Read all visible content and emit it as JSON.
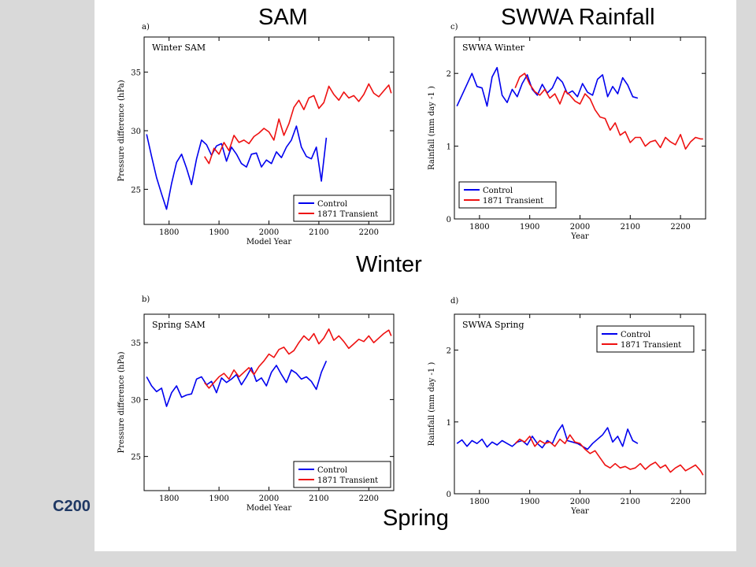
{
  "slide": {
    "header_left": "SAM",
    "header_right": "SWWA Rainfall",
    "label_winter": "Winter",
    "label_spring": "Spring",
    "footer_fragment": "C200"
  },
  "colors": {
    "control": "#0000ee",
    "transient": "#ee1111",
    "background": "#d9d9d9"
  },
  "chart_data": [
    {
      "id": "a",
      "panel_label": "a)",
      "type": "line",
      "title": "Winter SAM",
      "xlabel": "Model Year",
      "ylabel": "Pressure difference (hPa)",
      "xlim": [
        1750,
        2250
      ],
      "ylim": [
        22,
        38
      ],
      "xticks": [
        1800,
        1900,
        2000,
        2100,
        2200
      ],
      "yticks": [
        25,
        30,
        35
      ],
      "legend_position": "bottom-right",
      "series": [
        {
          "name": "Control",
          "color": "#0000ee",
          "x": [
            1755,
            1765,
            1775,
            1785,
            1795,
            1805,
            1815,
            1825,
            1835,
            1845,
            1855,
            1865,
            1875,
            1885,
            1895,
            1905,
            1915,
            1925,
            1935,
            1945,
            1955,
            1965,
            1975,
            1985,
            1995,
            2005,
            2015,
            2025,
            2035,
            2045,
            2055,
            2065,
            2075,
            2085,
            2095,
            2105,
            2115
          ],
          "y": [
            29.7,
            27.8,
            26.0,
            24.6,
            23.3,
            25.5,
            27.3,
            28.0,
            26.8,
            25.4,
            27.6,
            29.2,
            28.8,
            27.9,
            28.7,
            28.9,
            27.4,
            28.6,
            28.0,
            27.2,
            26.9,
            28.0,
            28.1,
            26.9,
            27.5,
            27.2,
            28.2,
            27.7,
            28.6,
            29.2,
            30.4,
            28.6,
            27.8,
            27.6,
            28.6,
            25.7,
            29.4
          ]
        },
        {
          "name": "1871 Transient",
          "color": "#ee1111",
          "x": [
            1871,
            1880,
            1890,
            1900,
            1910,
            1920,
            1930,
            1940,
            1950,
            1960,
            1970,
            1980,
            1990,
            2000,
            2010,
            2020,
            2030,
            2040,
            2050,
            2060,
            2070,
            2080,
            2090,
            2100,
            2110,
            2120,
            2130,
            2140,
            2150,
            2160,
            2170,
            2180,
            2190,
            2200,
            2210,
            2220,
            2230,
            2240,
            2245
          ],
          "y": [
            27.8,
            27.2,
            28.5,
            28.0,
            29.0,
            28.3,
            29.6,
            29.0,
            29.2,
            28.9,
            29.5,
            29.8,
            30.2,
            29.9,
            29.2,
            31.0,
            29.6,
            30.6,
            32.0,
            32.6,
            31.8,
            32.8,
            33.0,
            31.9,
            32.4,
            33.8,
            33.1,
            32.6,
            33.3,
            32.8,
            33.0,
            32.5,
            33.1,
            34.0,
            33.2,
            32.9,
            33.4,
            33.9,
            33.2
          ]
        }
      ]
    },
    {
      "id": "b",
      "panel_label": "b)",
      "type": "line",
      "title": "Spring SAM",
      "xlabel": "Model Year",
      "ylabel": "Pressure difference (hPa)",
      "xlim": [
        1750,
        2250
      ],
      "ylim": [
        22,
        37.5
      ],
      "xticks": [
        1800,
        1900,
        2000,
        2100,
        2200
      ],
      "yticks": [
        25,
        30,
        35
      ],
      "legend_position": "bottom-right",
      "series": [
        {
          "name": "Control",
          "color": "#0000ee",
          "x": [
            1755,
            1765,
            1775,
            1785,
            1795,
            1805,
            1815,
            1825,
            1835,
            1845,
            1855,
            1865,
            1875,
            1885,
            1895,
            1905,
            1915,
            1925,
            1935,
            1945,
            1955,
            1965,
            1975,
            1985,
            1995,
            2005,
            2015,
            2025,
            2035,
            2045,
            2055,
            2065,
            2075,
            2085,
            2095,
            2105,
            2115
          ],
          "y": [
            32.0,
            31.2,
            30.7,
            31.0,
            29.4,
            30.6,
            31.2,
            30.2,
            30.4,
            30.5,
            31.8,
            32.0,
            31.3,
            31.6,
            30.6,
            31.9,
            31.5,
            31.8,
            32.2,
            31.3,
            32.0,
            32.8,
            31.6,
            31.9,
            31.2,
            32.4,
            33.0,
            32.2,
            31.5,
            32.6,
            32.3,
            31.8,
            32.0,
            31.6,
            30.9,
            32.4,
            33.4
          ]
        },
        {
          "name": "1871 Transient",
          "color": "#ee1111",
          "x": [
            1871,
            1880,
            1890,
            1900,
            1910,
            1920,
            1930,
            1940,
            1950,
            1960,
            1970,
            1980,
            1990,
            2000,
            2010,
            2020,
            2030,
            2040,
            2050,
            2060,
            2070,
            2080,
            2090,
            2100,
            2110,
            2120,
            2130,
            2140,
            2150,
            2160,
            2170,
            2180,
            2190,
            2200,
            2210,
            2220,
            2230,
            2240,
            2245
          ],
          "y": [
            31.5,
            31.0,
            31.5,
            32.0,
            32.3,
            31.8,
            32.6,
            32.0,
            32.4,
            32.8,
            32.2,
            32.9,
            33.4,
            34.0,
            33.7,
            34.4,
            34.6,
            34.0,
            34.3,
            35.0,
            35.6,
            35.2,
            35.8,
            34.9,
            35.4,
            36.2,
            35.2,
            35.6,
            35.1,
            34.5,
            34.9,
            35.3,
            35.1,
            35.6,
            35.0,
            35.4,
            35.8,
            36.1,
            35.6
          ]
        }
      ]
    },
    {
      "id": "c",
      "panel_label": "c)",
      "type": "line",
      "title": "SWWA Winter",
      "xlabel": "Year",
      "ylabel": "Rainfall (mm day -1 )",
      "xlim": [
        1750,
        2250
      ],
      "ylim": [
        0,
        2.5
      ],
      "xticks": [
        1800,
        1900,
        2000,
        2100,
        2200
      ],
      "yticks": [
        0,
        1,
        2
      ],
      "legend_position": "bottom-left",
      "series": [
        {
          "name": "Control",
          "color": "#0000ee",
          "x": [
            1755,
            1765,
            1775,
            1785,
            1795,
            1805,
            1815,
            1825,
            1835,
            1845,
            1855,
            1865,
            1875,
            1885,
            1895,
            1905,
            1915,
            1925,
            1935,
            1945,
            1955,
            1965,
            1975,
            1985,
            1995,
            2005,
            2015,
            2025,
            2035,
            2045,
            2055,
            2065,
            2075,
            2085,
            2095,
            2105,
            2115
          ],
          "y": [
            1.55,
            1.7,
            1.85,
            2.0,
            1.82,
            1.8,
            1.55,
            1.95,
            2.08,
            1.7,
            1.6,
            1.78,
            1.68,
            1.86,
            1.98,
            1.78,
            1.7,
            1.85,
            1.73,
            1.8,
            1.95,
            1.88,
            1.72,
            1.76,
            1.68,
            1.86,
            1.74,
            1.7,
            1.92,
            1.98,
            1.68,
            1.82,
            1.72,
            1.94,
            1.84,
            1.68,
            1.66
          ]
        },
        {
          "name": "1871 Transient",
          "color": "#ee1111",
          "x": [
            1871,
            1880,
            1890,
            1900,
            1910,
            1920,
            1930,
            1940,
            1950,
            1960,
            1970,
            1980,
            1990,
            2000,
            2010,
            2020,
            2030,
            2040,
            2050,
            2060,
            2070,
            2080,
            2090,
            2100,
            2110,
            2120,
            2130,
            2140,
            2150,
            2160,
            2170,
            2180,
            2190,
            2200,
            2210,
            2220,
            2230,
            2240,
            2245
          ],
          "y": [
            1.8,
            1.95,
            2.0,
            1.85,
            1.75,
            1.7,
            1.78,
            1.66,
            1.72,
            1.58,
            1.76,
            1.7,
            1.62,
            1.58,
            1.72,
            1.65,
            1.5,
            1.4,
            1.38,
            1.22,
            1.32,
            1.15,
            1.2,
            1.05,
            1.12,
            1.12,
            1.0,
            1.06,
            1.08,
            0.98,
            1.12,
            1.06,
            1.02,
            1.16,
            0.96,
            1.06,
            1.12,
            1.1,
            1.1
          ]
        }
      ]
    },
    {
      "id": "d",
      "panel_label": "d)",
      "type": "line",
      "title": "SWWA Spring",
      "xlabel": "Year",
      "ylabel": "Rainfall (mm day -1 )",
      "xlim": [
        1750,
        2250
      ],
      "ylim": [
        0,
        2.5
      ],
      "xticks": [
        1800,
        1900,
        2000,
        2100,
        2200
      ],
      "yticks": [
        0,
        1,
        2
      ],
      "legend_position": "top-right",
      "series": [
        {
          "name": "Control",
          "color": "#0000ee",
          "x": [
            1755,
            1765,
            1775,
            1785,
            1795,
            1805,
            1815,
            1825,
            1835,
            1845,
            1855,
            1865,
            1875,
            1885,
            1895,
            1905,
            1915,
            1925,
            1935,
            1945,
            1955,
            1965,
            1975,
            1985,
            1995,
            2005,
            2015,
            2025,
            2035,
            2045,
            2055,
            2065,
            2075,
            2085,
            2095,
            2105,
            2115
          ],
          "y": [
            0.7,
            0.75,
            0.66,
            0.74,
            0.7,
            0.76,
            0.65,
            0.72,
            0.68,
            0.74,
            0.7,
            0.66,
            0.72,
            0.74,
            0.68,
            0.8,
            0.7,
            0.64,
            0.74,
            0.7,
            0.86,
            0.96,
            0.74,
            0.72,
            0.7,
            0.66,
            0.62,
            0.7,
            0.76,
            0.82,
            0.92,
            0.72,
            0.8,
            0.66,
            0.9,
            0.74,
            0.7
          ]
        },
        {
          "name": "1871 Transient",
          "color": "#ee1111",
          "x": [
            1871,
            1880,
            1890,
            1900,
            1910,
            1920,
            1930,
            1940,
            1950,
            1960,
            1970,
            1980,
            1990,
            2000,
            2010,
            2020,
            2030,
            2040,
            2050,
            2060,
            2070,
            2080,
            2090,
            2100,
            2110,
            2120,
            2130,
            2140,
            2150,
            2160,
            2170,
            2180,
            2190,
            2200,
            2210,
            2220,
            2230,
            2240,
            2245
          ],
          "y": [
            0.7,
            0.76,
            0.72,
            0.8,
            0.66,
            0.74,
            0.7,
            0.72,
            0.66,
            0.76,
            0.7,
            0.82,
            0.72,
            0.7,
            0.62,
            0.56,
            0.6,
            0.5,
            0.4,
            0.36,
            0.42,
            0.36,
            0.38,
            0.34,
            0.36,
            0.42,
            0.34,
            0.4,
            0.44,
            0.36,
            0.4,
            0.3,
            0.36,
            0.4,
            0.32,
            0.36,
            0.4,
            0.32,
            0.26
          ]
        }
      ]
    }
  ]
}
